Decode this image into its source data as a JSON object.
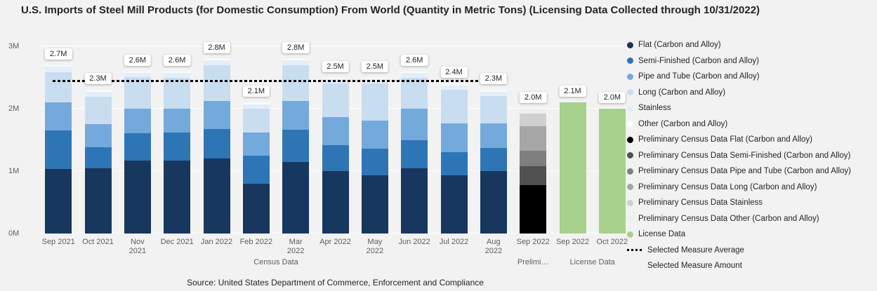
{
  "title": "U.S. Imports of Steel Mill Products (for Domestic Consumption) From World  (Quantity in Metric Tons) (Licensing Data Collected through 10/31/2022)",
  "source": "Source: United States Department of Commerce, Enforcement and Compliance",
  "chart_data": {
    "type": "bar",
    "stacked": true,
    "ylim_millions": [
      0,
      3
    ],
    "yticks": [
      {
        "value": 0,
        "label": "0M"
      },
      {
        "value": 1,
        "label": "1M"
      },
      {
        "value": 2,
        "label": "2M"
      },
      {
        "value": 3,
        "label": "3M"
      }
    ],
    "average_line": {
      "label": "Selected Measure Average",
      "value_millions": 2.43,
      "span": [
        0,
        11
      ],
      "color": "#000000"
    },
    "series_groups": {
      "census": [
        {
          "name": "Flat (Carbon and Alloy)",
          "color": "#17375e"
        },
        {
          "name": "Semi-Finished (Carbon and Alloy)",
          "color": "#2e75b6"
        },
        {
          "name": "Pipe and Tube (Carbon and Alloy)",
          "color": "#74a9dc"
        },
        {
          "name": "Long (Carbon and Alloy)",
          "color": "#c9ddf1"
        },
        {
          "name": "Stainless",
          "color": "#e4eef9"
        },
        {
          "name": "Other (Carbon and Alloy)",
          "color": "#f8fbfe"
        }
      ],
      "prelim": [
        {
          "name": "Preliminary Census Data Flat (Carbon and Alloy)",
          "color": "#000000"
        },
        {
          "name": "Preliminary Census Data Semi-Finished (Carbon and Alloy)",
          "color": "#515151"
        },
        {
          "name": "Preliminary Census Data Pipe and Tube (Carbon and Alloy)",
          "color": "#7f7f7f"
        },
        {
          "name": "Preliminary Census Data Long (Carbon and Alloy)",
          "color": "#a6a6a6"
        },
        {
          "name": "Preliminary Census Data Stainless",
          "color": "#d0d0d0"
        },
        {
          "name": "Preliminary Census Data Other (Carbon and Alloy)",
          "color": "#efefef"
        }
      ],
      "license": [
        {
          "name": "License Data",
          "color": "#a9d18e"
        }
      ]
    },
    "bars": [
      {
        "category": "Sep 2021",
        "x_lines": [
          "Sep 2021"
        ],
        "group": "census",
        "total_label": "2.7M",
        "total_millions": 2.7,
        "values_millions": [
          1.03,
          0.62,
          0.45,
          0.48,
          0.09,
          0.03
        ]
      },
      {
        "category": "Oct 2021",
        "x_lines": [
          "Oct 2021"
        ],
        "group": "census",
        "total_label": "2.3M",
        "total_millions": 2.3,
        "values_millions": [
          1.05,
          0.33,
          0.37,
          0.44,
          0.08,
          0.03
        ]
      },
      {
        "category": "Nov 2021",
        "x_lines": [
          "Nov",
          "2021"
        ],
        "group": "census",
        "total_label": "2.6M",
        "total_millions": 2.6,
        "values_millions": [
          1.17,
          0.44,
          0.39,
          0.51,
          0.06,
          0.03
        ]
      },
      {
        "category": "Dec 2021",
        "x_lines": [
          "Dec 2021"
        ],
        "group": "census",
        "total_label": "2.6M",
        "total_millions": 2.6,
        "values_millions": [
          1.17,
          0.45,
          0.38,
          0.5,
          0.07,
          0.03
        ]
      },
      {
        "category": "Jan 2022",
        "x_lines": [
          "Jan 2022"
        ],
        "group": "census",
        "total_label": "2.8M",
        "total_millions": 2.8,
        "values_millions": [
          1.2,
          0.47,
          0.45,
          0.58,
          0.07,
          0.03
        ]
      },
      {
        "category": "Feb 2022",
        "x_lines": [
          "Feb 2022"
        ],
        "group": "census",
        "total_label": "2.1M",
        "total_millions": 2.1,
        "values_millions": [
          0.8,
          0.45,
          0.37,
          0.38,
          0.07,
          0.03
        ]
      },
      {
        "category": "Mar 2022",
        "x_lines": [
          "Mar",
          "2022"
        ],
        "group": "census",
        "total_label": "2.8M",
        "total_millions": 2.8,
        "values_millions": [
          1.15,
          0.51,
          0.46,
          0.58,
          0.07,
          0.03
        ]
      },
      {
        "category": "Apr 2022",
        "x_lines": [
          "Apr 2022"
        ],
        "group": "census",
        "total_label": "2.5M",
        "total_millions": 2.5,
        "values_millions": [
          1.0,
          0.42,
          0.44,
          0.54,
          0.07,
          0.03
        ]
      },
      {
        "category": "May 2022",
        "x_lines": [
          "May",
          "2022"
        ],
        "group": "census",
        "total_label": "2.5M",
        "total_millions": 2.5,
        "values_millions": [
          0.93,
          0.43,
          0.45,
          0.59,
          0.07,
          0.03
        ]
      },
      {
        "category": "Jun 2022",
        "x_lines": [
          "Jun 2022"
        ],
        "group": "census",
        "total_label": "2.6M",
        "total_millions": 2.6,
        "values_millions": [
          1.05,
          0.45,
          0.5,
          0.5,
          0.07,
          0.03
        ]
      },
      {
        "category": "Jul 2022",
        "x_lines": [
          "Jul 2022"
        ],
        "group": "census",
        "total_label": "2.4M",
        "total_millions": 2.4,
        "values_millions": [
          0.93,
          0.37,
          0.46,
          0.54,
          0.07,
          0.03
        ]
      },
      {
        "category": "Aug 2022",
        "x_lines": [
          "Aug",
          "2022"
        ],
        "group": "census",
        "total_label": "2.3M",
        "total_millions": 2.3,
        "values_millions": [
          1.0,
          0.37,
          0.39,
          0.44,
          0.07,
          0.03
        ]
      },
      {
        "category": "Sep 2022",
        "x_lines": [
          "Sep 2022"
        ],
        "group": "prelim",
        "total_label": "2.0M",
        "total_millions": 2.0,
        "values_millions": [
          0.78,
          0.3,
          0.25,
          0.39,
          0.2,
          0.08
        ]
      },
      {
        "category": "Sep 2022",
        "x_lines": [
          "Sep 2022"
        ],
        "group": "license",
        "total_label": "2.1M",
        "total_millions": 2.1,
        "values_millions": [
          2.1
        ]
      },
      {
        "category": "Oct 2022",
        "x_lines": [
          "Oct 2022"
        ],
        "group": "license",
        "total_label": "2.0M",
        "total_millions": 2.0,
        "values_millions": [
          2.0
        ]
      }
    ],
    "group_labels": [
      {
        "label": "Census Data",
        "span": [
          0,
          11
        ]
      },
      {
        "label": "Prelimi…",
        "span": [
          12,
          12
        ]
      },
      {
        "label": "License Data",
        "span": [
          13,
          14
        ]
      }
    ]
  },
  "legend": {
    "items": [
      {
        "label": "Flat (Carbon and Alloy)",
        "icon": "circle",
        "color": "#17375e"
      },
      {
        "label": "Semi-Finished (Carbon and Alloy)",
        "icon": "circle",
        "color": "#2e75b6"
      },
      {
        "label": "Pipe and Tube (Carbon and Alloy)",
        "icon": "circle",
        "color": "#74a9dc"
      },
      {
        "label": "Long (Carbon and Alloy)",
        "icon": "circle",
        "color": "#c9ddf1"
      },
      {
        "label": "Stainless",
        "icon": "circle",
        "color": "#e4eef9"
      },
      {
        "label": "Other (Carbon and Alloy)",
        "icon": "circle",
        "color": "#fcfdfe"
      },
      {
        "label": "Preliminary Census Data Flat (Carbon and Alloy)",
        "icon": "circle",
        "color": "#000000"
      },
      {
        "label": "Preliminary Census Data Semi-Finished (Carbon and Alloy)",
        "icon": "circle",
        "color": "#515151"
      },
      {
        "label": "Preliminary Census Data Pipe and Tube (Carbon and Alloy)",
        "icon": "circle",
        "color": "#7f7f7f"
      },
      {
        "label": "Preliminary Census Data Long (Carbon and Alloy)",
        "icon": "circle",
        "color": "#a6a6a6"
      },
      {
        "label": "Preliminary Census Data Stainless",
        "icon": "circle",
        "color": "#d0d0d0"
      },
      {
        "label": "Preliminary Census Data Other (Carbon and Alloy)",
        "icon": "circle",
        "color": "#efefef"
      },
      {
        "label": "License Data",
        "icon": "circle",
        "color": "#a9d18e"
      },
      {
        "label": "Selected Measure Average",
        "icon": "dotted-line",
        "color": "#000000"
      },
      {
        "label": "Selected Measure Amount",
        "icon": "none",
        "color": ""
      }
    ]
  }
}
